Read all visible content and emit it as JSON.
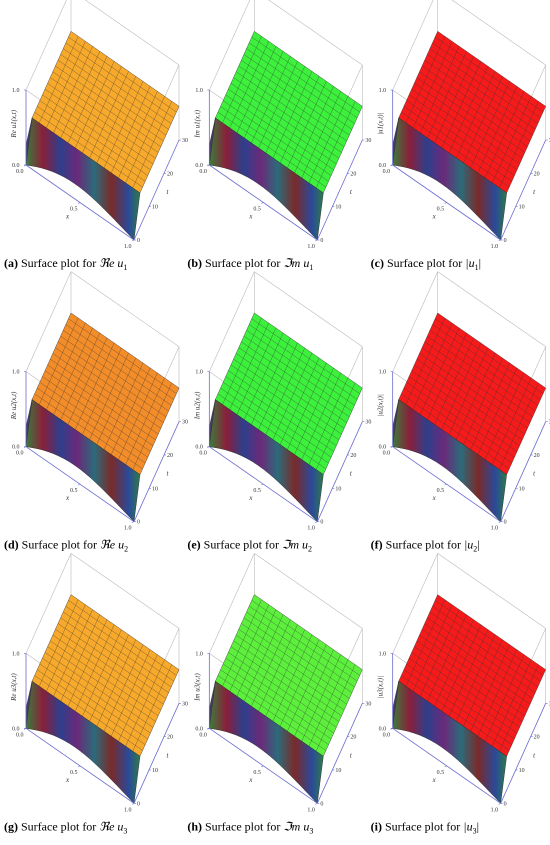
{
  "axes": {
    "x_label": "x",
    "t_label": "t",
    "x_ticks": [
      "0.0",
      "0.5",
      "1.0"
    ],
    "t_ticks": [
      "0",
      "10",
      "20",
      "30"
    ],
    "z_ticks": [
      "0.0",
      "1.0"
    ]
  },
  "panels": [
    {
      "label": "(a)",
      "caption": "Surface plot for",
      "symbol": "ℜe u",
      "sub": "1",
      "suffix": "",
      "z_label": "Re u1(x,t)",
      "color": "#f7a92c"
    },
    {
      "label": "(b)",
      "caption": "Surface plot for",
      "symbol": "ℑm u",
      "sub": "1",
      "suffix": "",
      "z_label": "Im u1(x,t)",
      "color": "#3cf03c"
    },
    {
      "label": "(c)",
      "caption": "Surface plot for",
      "symbol": "|u",
      "sub": "1",
      "suffix": "|",
      "z_label": "|u1(x,t)|",
      "color": "#f51b1b"
    },
    {
      "label": "(d)",
      "caption": "Surface plot for",
      "symbol": "ℜe u",
      "sub": "2",
      "suffix": "",
      "z_label": "Re u2(x,t)",
      "color": "#f28d2a"
    },
    {
      "label": "(e)",
      "caption": "Surface plot for",
      "symbol": "ℑm u",
      "sub": "2",
      "suffix": "",
      "z_label": "Im u2(x,t)",
      "color": "#3cf03c"
    },
    {
      "label": "(f)",
      "caption": "Surface plot for",
      "symbol": "|u",
      "sub": "2",
      "suffix": "|",
      "z_label": "|u2(x,t)|",
      "color": "#f51b1b"
    },
    {
      "label": "(g)",
      "caption": "Surface plot for",
      "symbol": "ℜe u",
      "sub": "3",
      "suffix": "",
      "z_label": "Re u3(x,t)",
      "color": "#f7a92c"
    },
    {
      "label": "(h)",
      "caption": "Surface plot for",
      "symbol": "ℑm u",
      "sub": "3",
      "suffix": "",
      "z_label": "Im u3(x,t)",
      "color": "#5cf03c"
    },
    {
      "label": "(i)",
      "caption": "Surface plot for",
      "symbol": "|u",
      "sub": "3",
      "suffix": "|",
      "z_label": "|u3(x,t)|",
      "color": "#f51b1b"
    }
  ]
}
